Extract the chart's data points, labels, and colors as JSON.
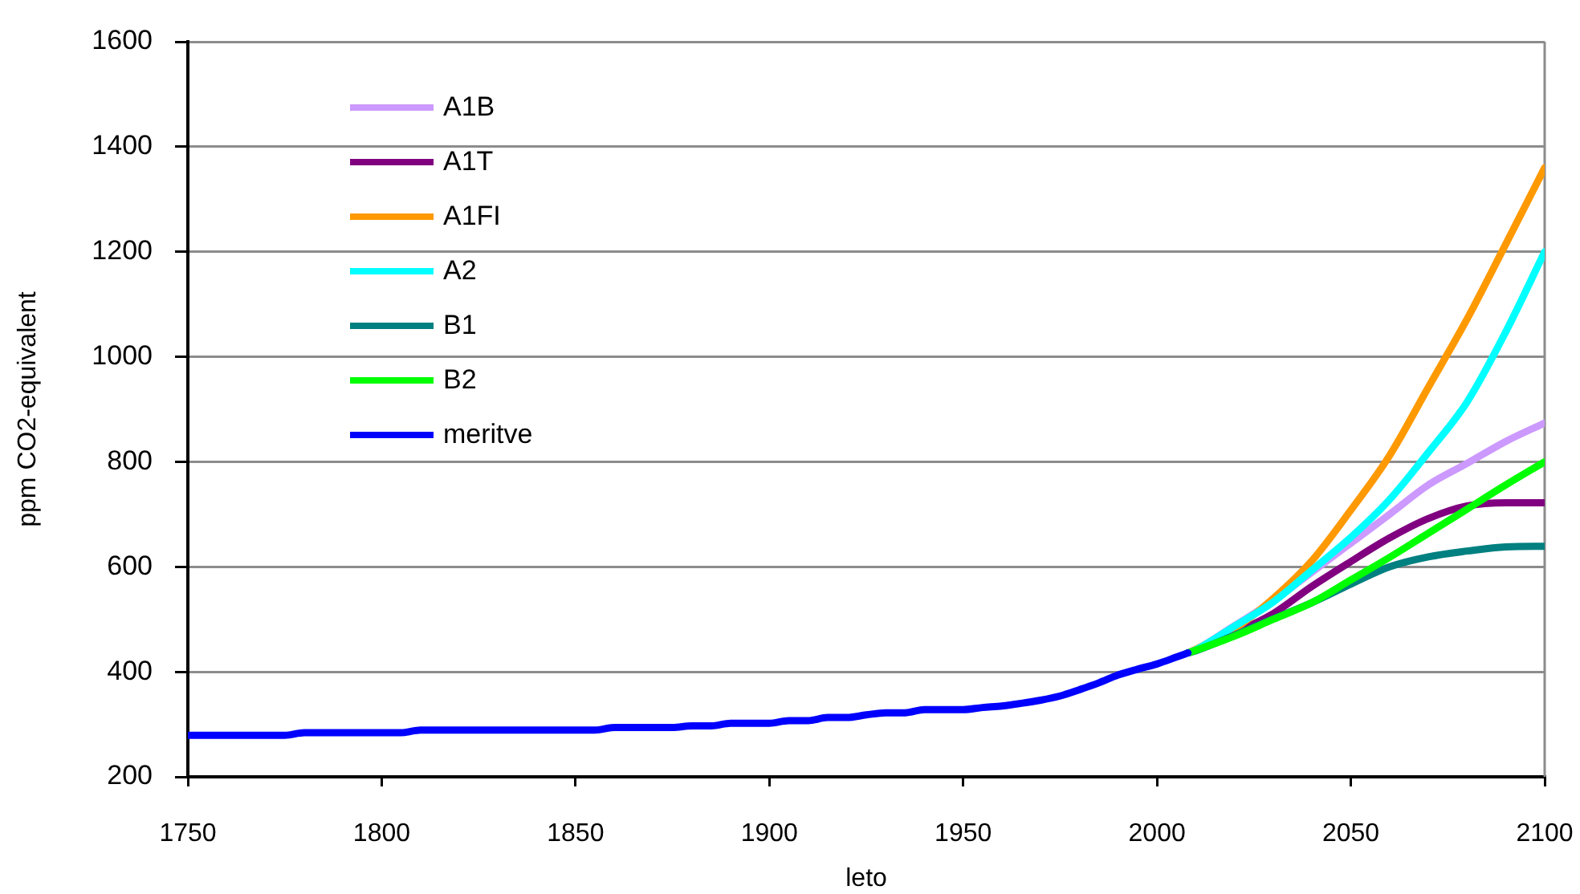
{
  "chart_data": {
    "type": "line",
    "xlabel": "leto",
    "ylabel": "ppm CO2-equivalent",
    "xlim": [
      1750,
      2100
    ],
    "xticks": [
      1750,
      1800,
      1850,
      1900,
      1950,
      2000,
      2050,
      2100
    ],
    "ylim": [
      200,
      1600
    ],
    "yticks": [
      200,
      400,
      600,
      800,
      1000,
      1200,
      1400,
      1600
    ],
    "grid": "y",
    "legend": "top left",
    "series": [
      {
        "name": "A1B",
        "color": "#cc99ff",
        "x": [
          2008,
          2010,
          2020,
          2030,
          2040,
          2050,
          2060,
          2070,
          2080,
          2090,
          2100
        ],
        "values": [
          436,
          442,
          488,
          535,
          590,
          645,
          700,
          756,
          797,
          839,
          874
        ]
      },
      {
        "name": "A1T",
        "color": "#800080",
        "x": [
          2008,
          2010,
          2020,
          2030,
          2040,
          2050,
          2060,
          2070,
          2080,
          2090,
          2100
        ],
        "values": [
          436,
          441,
          474,
          511,
          563,
          610,
          655,
          692,
          716,
          722,
          722
        ]
      },
      {
        "name": "A1FI",
        "color": "#ff9900",
        "x": [
          2008,
          2010,
          2020,
          2030,
          2040,
          2050,
          2060,
          2070,
          2080,
          2090,
          2100
        ],
        "values": [
          436,
          443,
          482,
          540,
          612,
          708,
          812,
          942,
          1072,
          1215,
          1360
        ]
      },
      {
        "name": "A2",
        "color": "#00ffff",
        "x": [
          2008,
          2010,
          2020,
          2030,
          2040,
          2050,
          2060,
          2070,
          2080,
          2090,
          2100
        ],
        "values": [
          436,
          442,
          487,
          533,
          594,
          656,
          728,
          818,
          914,
          1048,
          1200
        ]
      },
      {
        "name": "B1",
        "color": "#008080",
        "x": [
          2008,
          2010,
          2020,
          2030,
          2040,
          2050,
          2060,
          2070,
          2080,
          2090,
          2100
        ],
        "values": [
          436,
          440,
          470,
          501,
          532,
          567,
          600,
          619,
          630,
          638,
          639
        ]
      },
      {
        "name": "B2",
        "color": "#00ff00",
        "x": [
          2008,
          2010,
          2020,
          2030,
          2040,
          2050,
          2060,
          2070,
          2080,
          2090,
          2100
        ],
        "values": [
          436,
          441,
          468,
          500,
          532,
          575,
          618,
          664,
          710,
          756,
          800
        ]
      },
      {
        "name": "meritve",
        "color": "#0000ff",
        "x": [
          1750,
          1775,
          1780,
          1805,
          1810,
          1855,
          1860,
          1875,
          1880,
          1885,
          1890,
          1900,
          1905,
          1910,
          1915,
          1920,
          1925,
          1930,
          1935,
          1940,
          1950,
          1955,
          1960,
          1965,
          1970,
          1975,
          1980,
          1985,
          1990,
          1995,
          2000,
          2005,
          2008
        ],
        "values": [
          279,
          279,
          284,
          284,
          289,
          289,
          294,
          294,
          297,
          297,
          302,
          302,
          307,
          307,
          313,
          313,
          318,
          322,
          322,
          328,
          328,
          332,
          335,
          340,
          346,
          354,
          366,
          379,
          394,
          405,
          415,
          428,
          436
        ]
      }
    ]
  }
}
